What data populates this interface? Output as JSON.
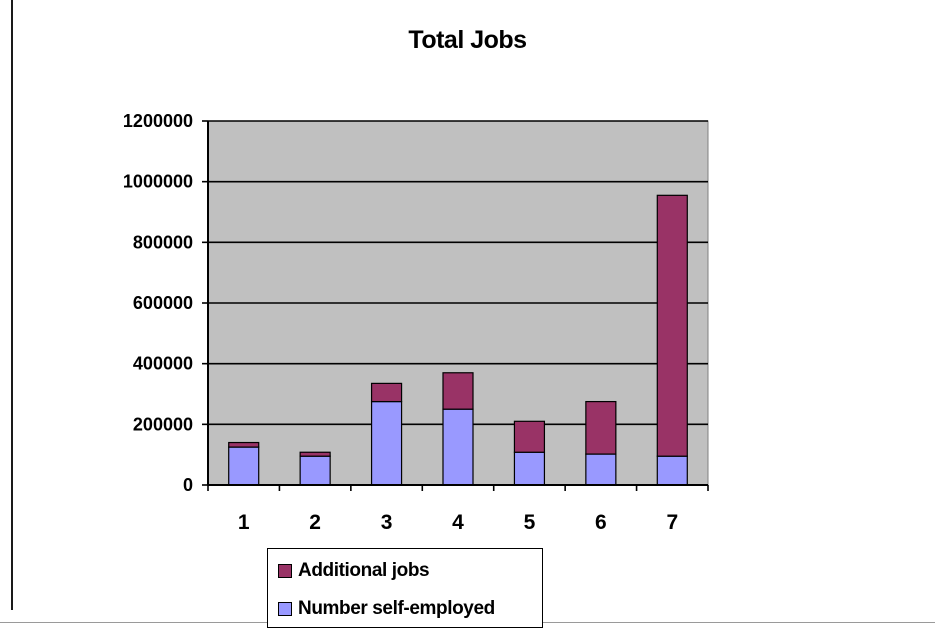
{
  "chart_data": {
    "type": "bar",
    "stacked": true,
    "title": "Total Jobs",
    "xlabel": "",
    "ylabel": "",
    "categories": [
      "1",
      "2",
      "3",
      "4",
      "5",
      "6",
      "7"
    ],
    "ylim": [
      0,
      1200000
    ],
    "yticks": [
      "0",
      "200000",
      "400000",
      "600000",
      "800000",
      "1000000",
      "1200000"
    ],
    "grid": true,
    "legend_position": "bottom",
    "series": [
      {
        "name": "Number self-employed",
        "color": "#9999ff",
        "values": [
          125000,
          95000,
          275000,
          250000,
          108000,
          102000,
          95000
        ]
      },
      {
        "name": "Additional jobs",
        "color": "#993366",
        "values": [
          15000,
          13000,
          60000,
          120000,
          102000,
          173000,
          860000
        ]
      }
    ],
    "plot_background": "#c0c0c0"
  }
}
